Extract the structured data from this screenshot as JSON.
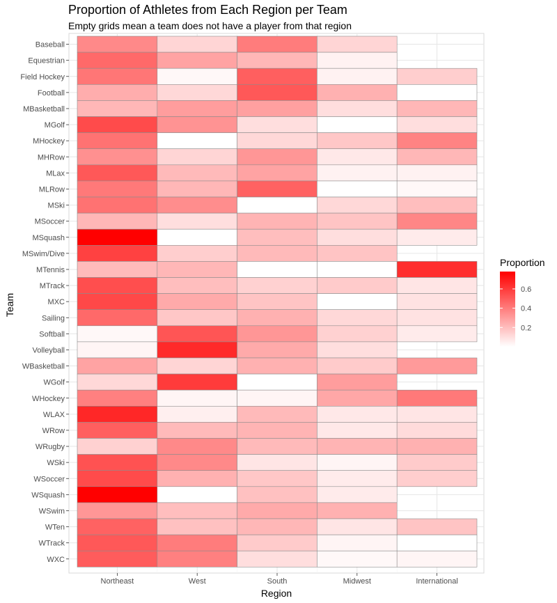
{
  "chart_data": {
    "type": "heatmap",
    "title": "Proportion of Athletes from Each Region per Team",
    "subtitle": "Empty grids mean a team does not have a player from that region",
    "xlabel": "Region",
    "ylabel": "Team",
    "regions": [
      "Northeast",
      "West",
      "South",
      "Midwest",
      "International"
    ],
    "teams": [
      "Baseball",
      "Equestrian",
      "Field Hockey",
      "Football",
      "MBasketball",
      "MGolf",
      "MHockey",
      "MHRow",
      "MLax",
      "MLRow",
      "MSki",
      "MSoccer",
      "MSquash",
      "MSwim/Dive",
      "MTennis",
      "MTrack",
      "MXC",
      "Sailing",
      "Softball",
      "Volleyball",
      "WBasketball",
      "WGolf",
      "WHockey",
      "WLAX",
      "WRow",
      "WRugby",
      "WSki",
      "WSoccer",
      "WSquash",
      "WSwim",
      "WTen",
      "WTrack",
      "WXC"
    ],
    "values": [
      [
        0.36,
        0.13,
        0.4,
        0.13,
        null
      ],
      [
        0.46,
        0.28,
        0.22,
        0.04,
        null
      ],
      [
        0.42,
        0.02,
        0.49,
        0.04,
        0.15
      ],
      [
        0.25,
        0.12,
        0.51,
        0.24,
        0.0
      ],
      [
        0.22,
        0.3,
        0.29,
        0.1,
        0.22
      ],
      [
        0.55,
        0.33,
        0.1,
        0.0,
        0.1
      ],
      [
        0.43,
        0.0,
        0.12,
        0.17,
        0.38
      ],
      [
        0.34,
        0.13,
        0.32,
        0.07,
        0.22
      ],
      [
        0.51,
        0.21,
        0.28,
        0.04,
        0.04
      ],
      [
        0.41,
        0.22,
        0.48,
        0.0,
        0.02
      ],
      [
        0.43,
        0.35,
        0.0,
        0.12,
        0.2
      ],
      [
        0.22,
        0.1,
        0.23,
        0.18,
        0.37
      ],
      [
        0.78,
        0.0,
        0.2,
        0.1,
        0.06
      ],
      [
        0.58,
        0.15,
        0.21,
        0.18,
        null
      ],
      [
        0.21,
        0.22,
        0.0,
        0.0,
        0.64
      ],
      [
        0.54,
        0.2,
        0.14,
        0.16,
        0.08
      ],
      [
        0.56,
        0.26,
        0.18,
        0.0,
        0.09
      ],
      [
        0.46,
        0.17,
        0.24,
        0.12,
        0.09
      ],
      [
        0.02,
        0.52,
        0.32,
        0.14,
        0.06
      ],
      [
        0.03,
        0.65,
        0.26,
        0.1,
        null
      ],
      [
        0.28,
        0.13,
        0.24,
        0.16,
        0.31
      ],
      [
        0.12,
        0.6,
        0.0,
        0.3,
        null
      ],
      [
        0.39,
        0.03,
        0.03,
        0.27,
        0.41
      ],
      [
        0.66,
        0.05,
        0.21,
        0.07,
        0.08
      ],
      [
        0.49,
        0.21,
        0.23,
        0.07,
        0.11
      ],
      [
        0.14,
        0.36,
        0.21,
        0.23,
        0.24
      ],
      [
        0.53,
        0.36,
        0.08,
        0.03,
        0.16
      ],
      [
        0.55,
        0.24,
        0.17,
        0.06,
        0.15
      ],
      [
        0.78,
        0.0,
        0.19,
        0.06,
        null
      ],
      [
        0.32,
        0.2,
        0.26,
        0.24,
        null
      ],
      [
        0.48,
        0.19,
        0.22,
        0.08,
        0.18
      ],
      [
        0.51,
        0.4,
        0.16,
        0.03,
        0.0
      ],
      [
        0.5,
        0.39,
        0.1,
        0.02,
        0.03
      ]
    ],
    "color_scale": {
      "low": "#ffffff",
      "high": "#ff0000",
      "domain": [
        0,
        0.78
      ]
    },
    "legend": {
      "title": "Proportion",
      "ticks": [
        0.2,
        0.4,
        0.6
      ],
      "placement": "right"
    }
  }
}
